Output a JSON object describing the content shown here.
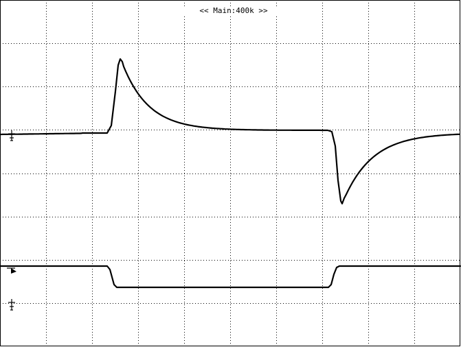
{
  "screen": {
    "timebase_label": "<< Main:400k >>",
    "trigger_marker_text": "T",
    "background_color": "#ffffff",
    "trace_color": "#000000",
    "grid_color": "#000000"
  },
  "grid": {
    "horizontal_divisions": 10,
    "vertical_divisions": 8
  },
  "channels": [
    {
      "name": "",
      "ground_marker_icon": "ground-icon",
      "waveform": "derivative-spikes"
    },
    {
      "name": "",
      "ground_marker_icon": "ground-icon",
      "waveform": "square-pulse-low"
    }
  ]
}
